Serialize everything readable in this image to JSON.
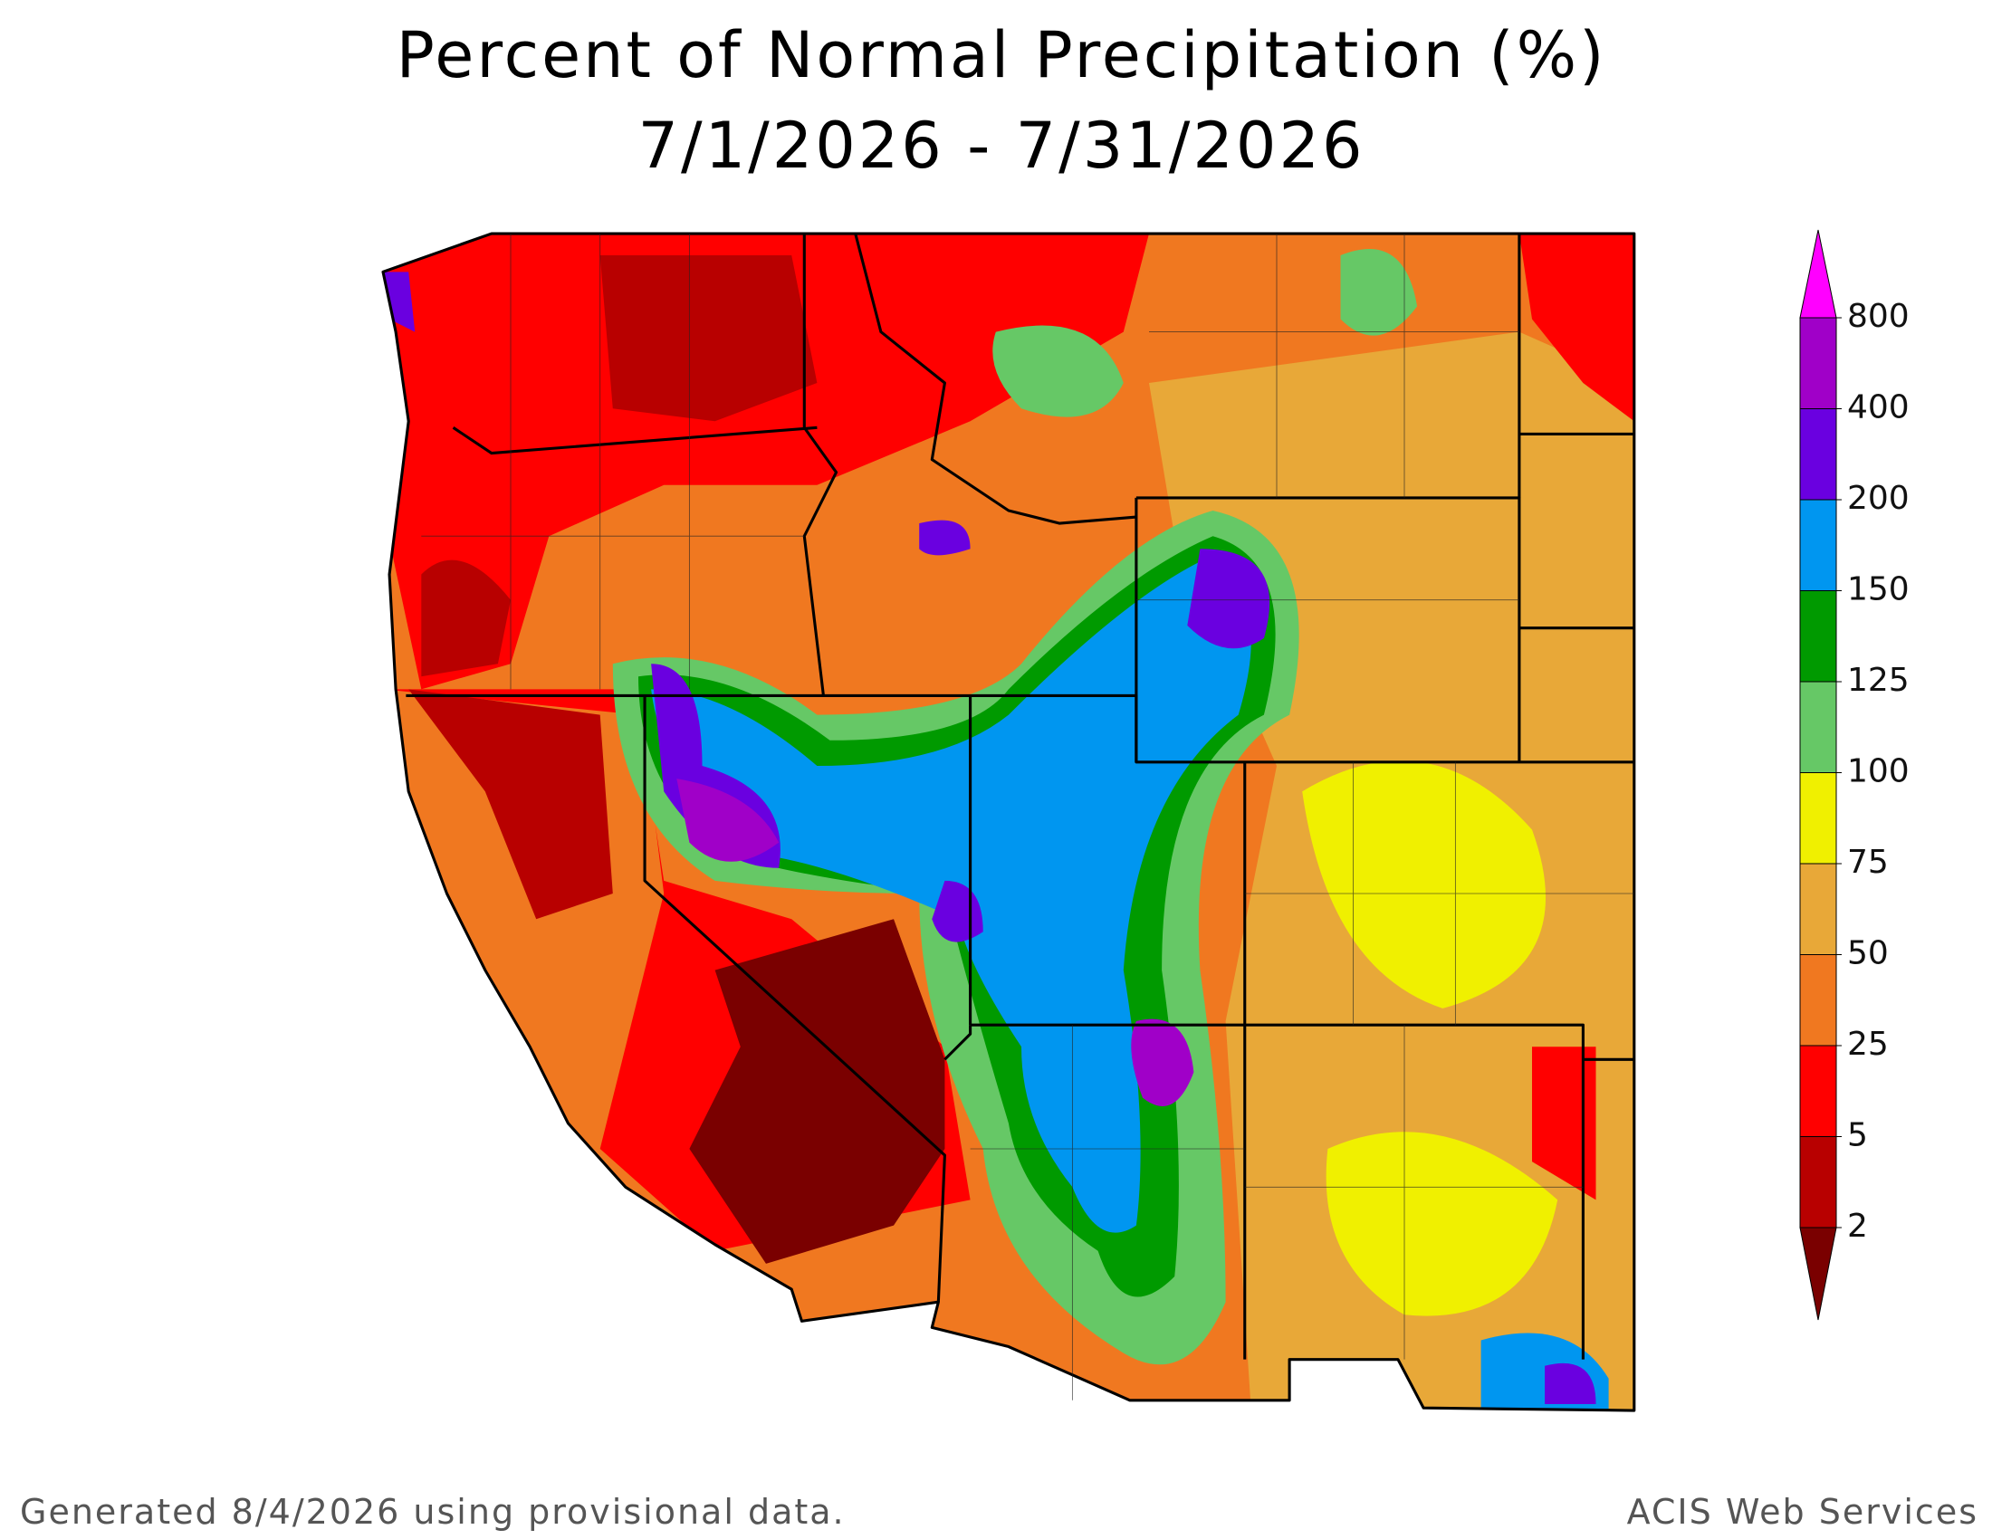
{
  "header": {
    "title": "Percent of Normal Precipitation (%)",
    "subtitle": "7/1/2026 - 7/31/2026"
  },
  "legend": {
    "thresholds": [
      2,
      5,
      25,
      50,
      75,
      100,
      125,
      150,
      200,
      400,
      800
    ],
    "colors": [
      "#7a0000",
      "#b80000",
      "#ff0000",
      "#f07820",
      "#e8a838",
      "#f0f000",
      "#66c866",
      "#009a00",
      "#0096f0",
      "#6a00e0",
      "#a000c8",
      "#ff00ff"
    ]
  },
  "footer": {
    "left": "Generated 8/4/2026 using provisional data.",
    "right": "ACIS Web Services"
  }
}
